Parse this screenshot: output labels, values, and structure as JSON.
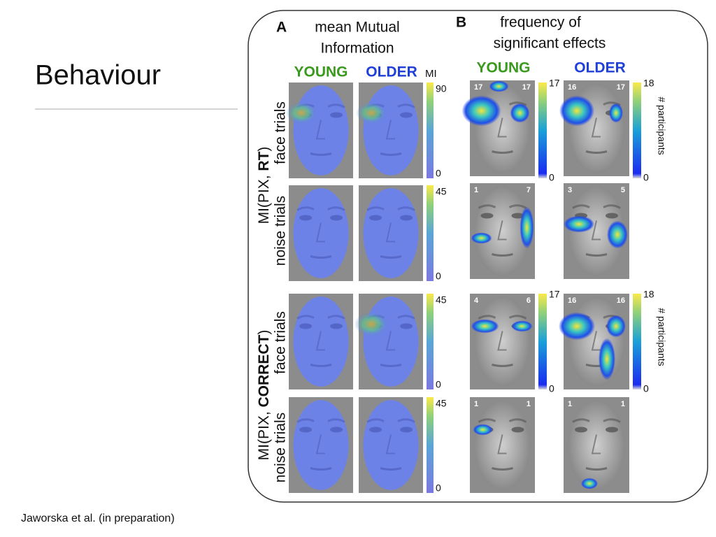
{
  "slide": {
    "title": "Behaviour",
    "citation": "Jaworska et al. (in preparation)"
  },
  "panel_a": {
    "label": "A",
    "title_line1": "mean Mutual",
    "title_line2": "Information",
    "columns": [
      "YOUNG",
      "OLDER"
    ],
    "colorbar_label": "MI",
    "colorbars": [
      {
        "max": 90,
        "min": 0
      },
      {
        "max": 45,
        "min": 0
      },
      {
        "max": 45,
        "min": 0
      },
      {
        "max": 45,
        "min": 0
      }
    ]
  },
  "panel_b": {
    "label": "B",
    "title_line1": "frequency of",
    "title_line2": "significant effects",
    "columns": [
      "YOUNG",
      "OLDER"
    ],
    "colorbar_label": "# participants",
    "colorbars": [
      {
        "young_max": 17,
        "young_min": 0,
        "older_max": 18,
        "older_min": 0
      },
      {
        "young_max": 17,
        "young_min": 0,
        "older_max": 18,
        "older_min": 0
      }
    ],
    "counts": [
      [
        [
          17,
          17
        ],
        [
          16,
          17
        ]
      ],
      [
        [
          1,
          7
        ],
        [
          3,
          5
        ]
      ],
      [
        [
          4,
          6
        ],
        [
          16,
          16
        ]
      ],
      [
        [
          1,
          1
        ],
        [
          1,
          1
        ]
      ]
    ]
  },
  "row_groups": [
    {
      "prefix": "MI(PIX, ",
      "measure": "RT",
      "suffix": ")",
      "rows": [
        "face trials",
        "noise trials"
      ]
    },
    {
      "prefix": "MI(PIX, ",
      "measure": "CORRECT",
      "suffix": ")",
      "rows": [
        "face trials",
        "noise trials"
      ]
    }
  ]
}
